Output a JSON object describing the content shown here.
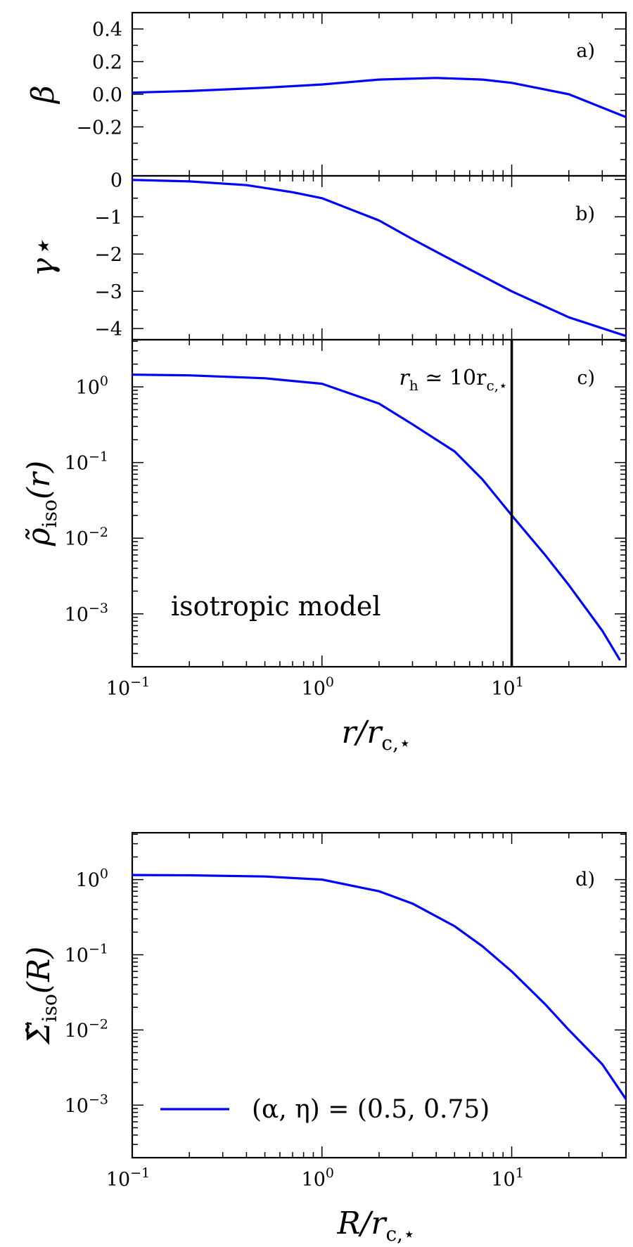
{
  "chart_data": [
    {
      "panel": "a)",
      "type": "line",
      "xscale": "log",
      "xlim": [
        0.1,
        40
      ],
      "ylim": [
        -0.5,
        0.5
      ],
      "ylabel": "β",
      "yticks": [
        0.4,
        0.2,
        0.0,
        -0.2
      ],
      "ytick_labels": [
        "0.4",
        "0.2",
        "0.0",
        "−0.2"
      ],
      "series": [
        {
          "color": "#0000ff",
          "x": [
            0.1,
            0.2,
            0.5,
            1,
            2,
            4,
            7,
            10,
            20,
            40
          ],
          "y": [
            0.01,
            0.02,
            0.04,
            0.06,
            0.09,
            0.1,
            0.09,
            0.07,
            0.0,
            -0.14
          ]
        }
      ]
    },
    {
      "panel": "b)",
      "type": "line",
      "xscale": "log",
      "xlim": [
        0.1,
        40
      ],
      "ylim": [
        -4.3,
        0.1
      ],
      "ylabel": "γ⋆",
      "yticks": [
        0,
        -1,
        -2,
        -3,
        -4
      ],
      "ytick_labels": [
        "0",
        "−1",
        "−2",
        "−3",
        "−4"
      ],
      "series": [
        {
          "color": "#0000ff",
          "x": [
            0.1,
            0.2,
            0.4,
            0.7,
            1,
            2,
            3,
            5,
            10,
            20,
            40
          ],
          "y": [
            -0.01,
            -0.05,
            -0.15,
            -0.34,
            -0.5,
            -1.1,
            -1.6,
            -2.2,
            -3.0,
            -3.7,
            -4.2
          ]
        }
      ]
    },
    {
      "panel": "c)",
      "type": "line",
      "xscale": "log",
      "yscale": "log",
      "xlim": [
        0.1,
        40
      ],
      "ylim": [
        0.0002,
        4.2
      ],
      "ylabel_parts": [
        "ρ̃",
        "iso",
        "(r)"
      ],
      "xlabel_parts": [
        "r/r",
        "c,⋆"
      ],
      "yticks": [
        1,
        0.1,
        0.01,
        0.001
      ],
      "ytick_labels": [
        [
          "10",
          "0"
        ],
        [
          "10",
          "−1"
        ],
        [
          "10",
          "−2"
        ],
        [
          "10",
          "−3"
        ]
      ],
      "xticks": [
        0.1,
        1,
        10
      ],
      "xtick_labels": [
        [
          "10",
          "−1"
        ],
        [
          "10",
          "0"
        ],
        [
          "10",
          "1"
        ]
      ],
      "annotation": "isotropic model",
      "vline": {
        "x": 10,
        "label_parts": [
          "r",
          "h",
          " ≃ 10r",
          "c,⋆"
        ]
      },
      "series": [
        {
          "color": "#0000ff",
          "x": [
            0.1,
            0.2,
            0.5,
            1,
            2,
            3,
            5,
            7,
            10,
            15,
            20,
            30,
            37
          ],
          "y": [
            1.45,
            1.42,
            1.3,
            1.1,
            0.6,
            0.32,
            0.14,
            0.06,
            0.02,
            0.006,
            0.0024,
            0.0006,
            0.00025
          ]
        }
      ]
    },
    {
      "panel": "d)",
      "type": "line",
      "xscale": "log",
      "yscale": "log",
      "xlim": [
        0.1,
        40
      ],
      "ylim": [
        0.0002,
        4.2
      ],
      "ylabel_parts": [
        "Σ̃",
        "iso",
        "(R)"
      ],
      "xlabel_parts": [
        "R/r",
        "c,⋆"
      ],
      "yticks": [
        1,
        0.1,
        0.01,
        0.001
      ],
      "ytick_labels": [
        [
          "10",
          "0"
        ],
        [
          "10",
          "−1"
        ],
        [
          "10",
          "−2"
        ],
        [
          "10",
          "−3"
        ]
      ],
      "xticks": [
        0.1,
        1,
        10
      ],
      "xtick_labels": [
        [
          "10",
          "−1"
        ],
        [
          "10",
          "0"
        ],
        [
          "10",
          "1"
        ]
      ],
      "legend": {
        "placement": "lower-left",
        "entries": [
          "(α, η) = (0.5, 0.75)"
        ]
      },
      "series": [
        {
          "color": "#0000ff",
          "x": [
            0.1,
            0.2,
            0.5,
            1,
            2,
            3,
            5,
            7,
            10,
            15,
            20,
            30,
            40
          ],
          "y": [
            1.15,
            1.14,
            1.1,
            1.0,
            0.7,
            0.48,
            0.24,
            0.13,
            0.06,
            0.022,
            0.01,
            0.0035,
            0.0012
          ]
        }
      ]
    }
  ]
}
